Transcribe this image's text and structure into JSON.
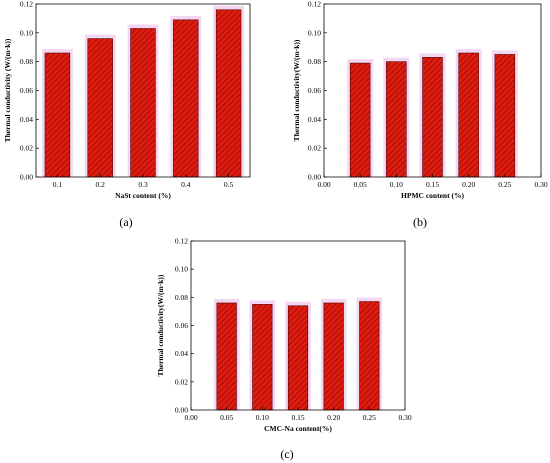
{
  "colors": {
    "bar": "#e01b0f",
    "hatch": "#3a6a0a",
    "glow": "#e8b4e8"
  },
  "chart_data": [
    {
      "id": "a",
      "type": "bar",
      "panel_label": "(a)",
      "xlabel": "NaSt content (%)",
      "ylabel": "Thermal conductivity (W/(m·k))",
      "categories": [
        "0.1",
        "0.2",
        "0.3",
        "0.4",
        "0.5"
      ],
      "values": [
        0.086,
        0.096,
        0.103,
        0.109,
        0.116
      ],
      "ylim": [
        0,
        0.12
      ],
      "yticks": [
        "0.00",
        "0.02",
        "0.04",
        "0.06",
        "0.08",
        "0.10",
        "0.12"
      ],
      "grid": false
    },
    {
      "id": "b",
      "type": "bar",
      "panel_label": "(b)",
      "xlabel": "HPMC content (%)",
      "ylabel": "Thermal conductivity(W/(m·k))",
      "x": [
        0.05,
        0.1,
        0.15,
        0.2,
        0.25
      ],
      "values": [
        0.079,
        0.08,
        0.083,
        0.086,
        0.085
      ],
      "xlim": [
        0,
        0.3
      ],
      "xticks": [
        "0.00",
        "0.05",
        "0.10",
        "0.15",
        "0.20",
        "0.25",
        "0.30"
      ],
      "ylim": [
        0,
        0.12
      ],
      "yticks": [
        "0.00",
        "0.02",
        "0.04",
        "0.06",
        "0.08",
        "0.10",
        "0.12"
      ],
      "grid": false
    },
    {
      "id": "c",
      "type": "bar",
      "panel_label": "(c)",
      "xlabel": "CMC-Na content(%)",
      "ylabel": "Thermal conductivity(W/(m·k))",
      "x": [
        0.05,
        0.1,
        0.15,
        0.2,
        0.25
      ],
      "values": [
        0.076,
        0.075,
        0.074,
        0.076,
        0.077
      ],
      "xlim": [
        0,
        0.3
      ],
      "xticks": [
        "0.00",
        "0.05",
        "0.10",
        "0.15",
        "0.20",
        "0.25",
        "0.30"
      ],
      "ylim": [
        0,
        0.12
      ],
      "yticks": [
        "0.00",
        "0.02",
        "0.04",
        "0.06",
        "0.08",
        "0.10",
        "0.12"
      ],
      "grid": false
    }
  ]
}
